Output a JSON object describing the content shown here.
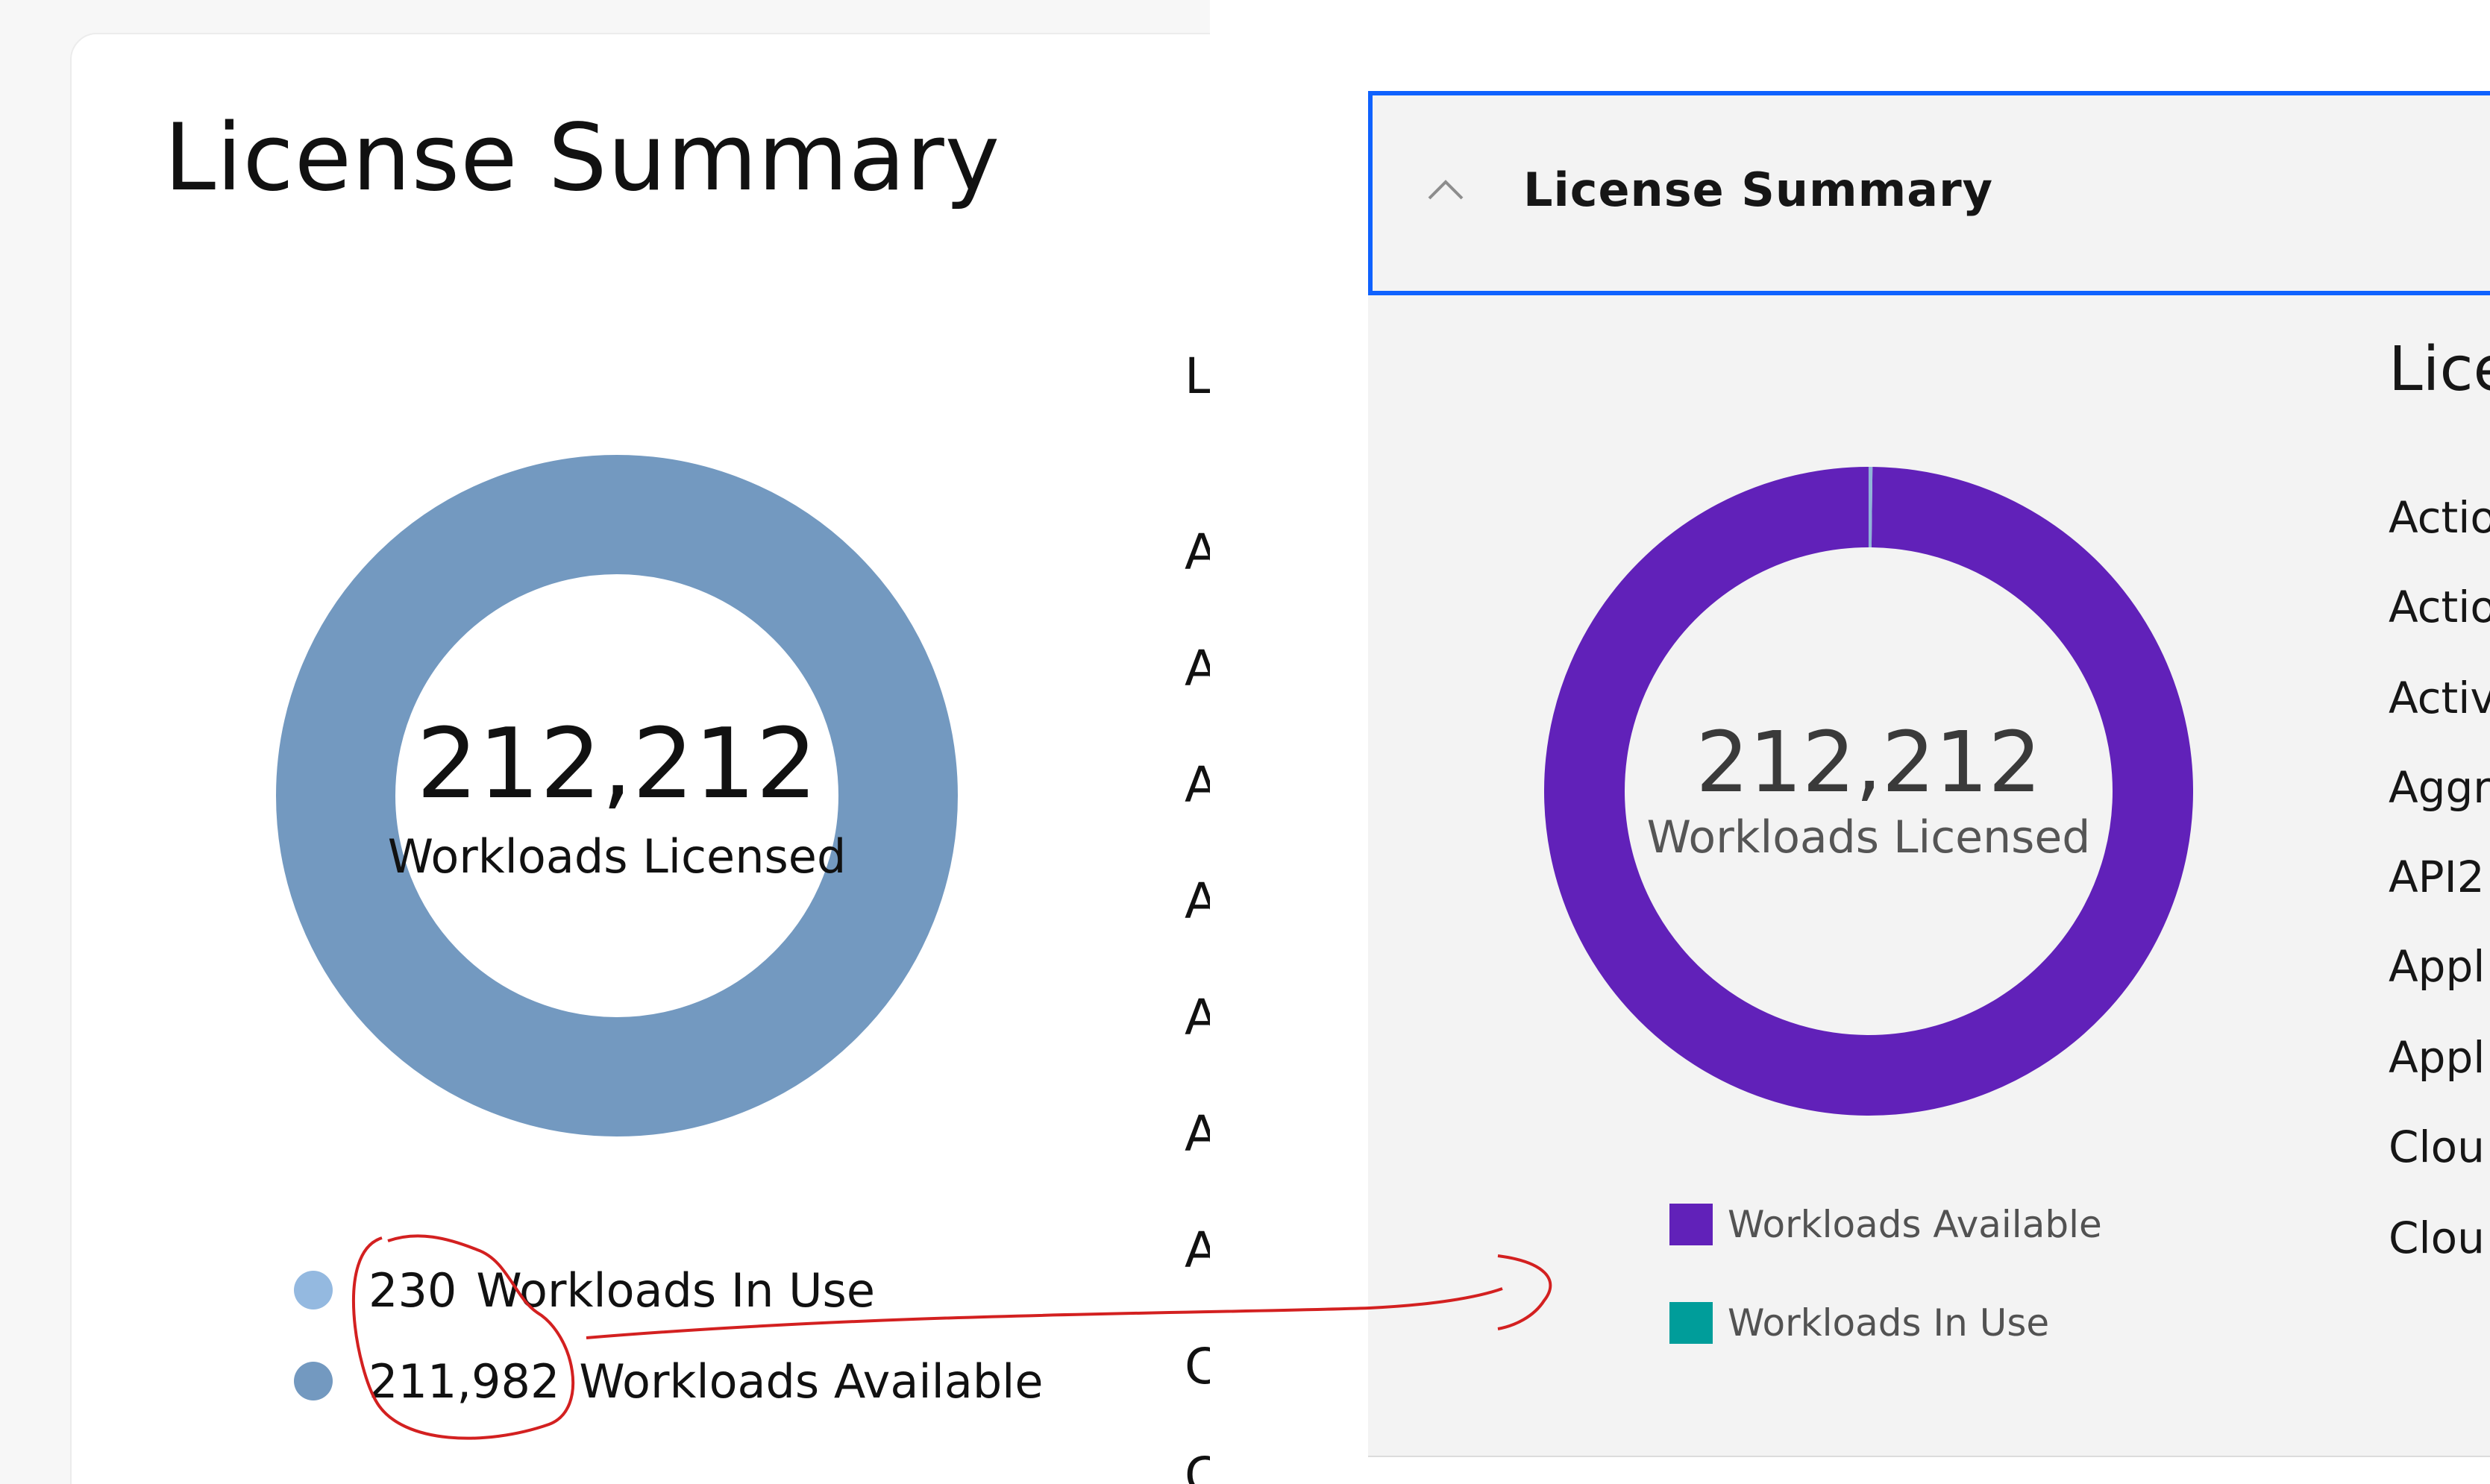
{
  "left": {
    "title": "License Summary",
    "center_value": "212,212",
    "center_label": "Workloads Licensed",
    "legend": [
      {
        "value": "230",
        "label": "Workloads In Use",
        "color": "#94b9e0"
      },
      {
        "value": "211,982",
        "label": "Workloads Available",
        "color": "#7399c0"
      }
    ],
    "table_column_fragments": [
      "L",
      "A",
      "A",
      "A",
      "A",
      "A",
      "A",
      "A",
      "C",
      "C"
    ]
  },
  "right": {
    "header_title": "License Summary",
    "center_value": "212,212",
    "center_label": "Workloads Licensed",
    "legend": [
      {
        "label": "Workloads Available",
        "color": "#6121b9"
      },
      {
        "label": "Workloads In Use",
        "color": "#009d9a"
      }
    ],
    "section_heading_fragment": "Lice",
    "list_fragments": [
      "Actio",
      "Actio",
      "Activ",
      "Aggr",
      "API2",
      "Appl",
      "Appl",
      "Clou",
      "Clou"
    ]
  },
  "colors": {
    "left_donut": "#7399c0",
    "right_donut": "#6121b9",
    "right_in_use_slice": "#8fb4d8",
    "header_border": "#0f62fe",
    "annotation": "#d32020"
  },
  "chart_data": [
    {
      "type": "pie",
      "categories": [
        "Workloads In Use",
        "Workloads Available"
      ],
      "values": [
        230,
        211982
      ],
      "title": "",
      "total_label": "212,212 Workloads Licensed"
    },
    {
      "type": "pie",
      "categories": [
        "Workloads Available",
        "Workloads In Use"
      ],
      "values": [
        211982,
        230
      ],
      "title": "",
      "total_label": "212,212 Workloads Licensed"
    }
  ]
}
